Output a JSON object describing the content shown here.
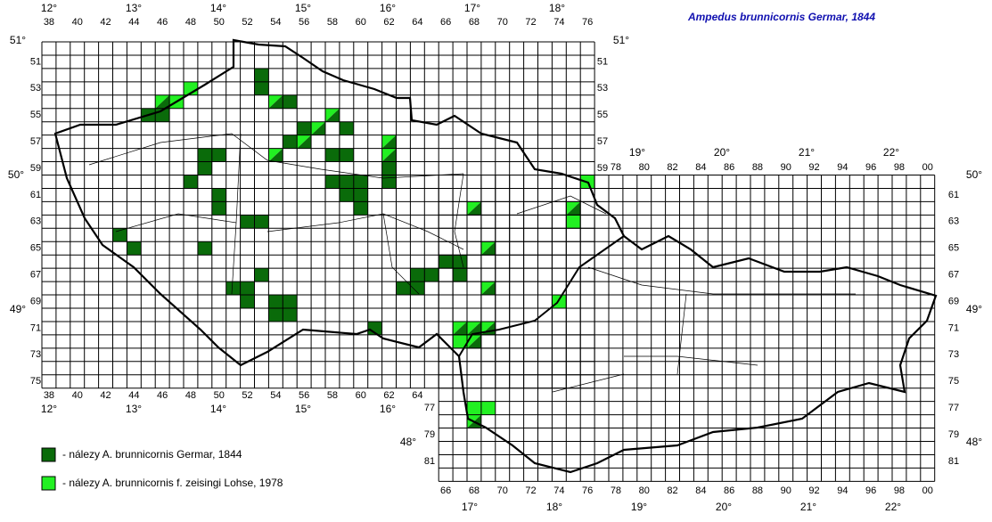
{
  "title": "Ampedus brunnicornis Germar, 1844",
  "grid_labels": {
    "west_top": [
      "38",
      "40",
      "42",
      "44",
      "46",
      "48",
      "50",
      "52",
      "54",
      "56",
      "58",
      "60",
      "62",
      "64",
      "66",
      "68",
      "70",
      "72",
      "74",
      "76"
    ],
    "west_left": [
      "51",
      "53",
      "55",
      "57",
      "59",
      "61",
      "63",
      "65",
      "67",
      "69",
      "71",
      "73",
      "75"
    ],
    "west_right": [
      "51",
      "53",
      "55",
      "57",
      "59"
    ],
    "west_bottom": [
      "38",
      "40",
      "42",
      "44",
      "46",
      "48",
      "50",
      "52",
      "54",
      "56",
      "58",
      "60",
      "62",
      "64"
    ],
    "east_top": [
      "78",
      "80",
      "82",
      "84",
      "86",
      "88",
      "90",
      "92",
      "94",
      "96",
      "98",
      "00"
    ],
    "east_right": [
      "61",
      "63",
      "65",
      "67",
      "69",
      "71",
      "73",
      "75",
      "77",
      "79",
      "81"
    ],
    "east_left": [
      "77",
      "79",
      "81"
    ],
    "east_bottom": [
      "66",
      "68",
      "70",
      "72",
      "74",
      "76",
      "78",
      "80",
      "82",
      "84",
      "86",
      "88",
      "90",
      "92",
      "94",
      "96",
      "98",
      "00"
    ]
  },
  "degree_labels": {
    "lon_top_west": [
      "12°",
      "13°",
      "14°",
      "15°",
      "16°",
      "17°",
      "18°"
    ],
    "lon_top_east": [
      "19°",
      "20°",
      "21°",
      "22°"
    ],
    "lon_bottom_west": [
      "12°",
      "13°",
      "14°",
      "15°",
      "16°"
    ],
    "lon_bottom_east": [
      "17°",
      "18°",
      "19°",
      "20°",
      "21°",
      "22°"
    ],
    "lat_left": [
      "51°",
      "50°",
      "49°",
      "48°"
    ],
    "lat_right": [
      "51°",
      "50°",
      "49°",
      "48°"
    ]
  },
  "legend": [
    "- nálezy  A. brunnicornis Germar, 1844",
    "- nálezy  A. brunnicornis f. zeisingi Lohse, 1978"
  ]
}
